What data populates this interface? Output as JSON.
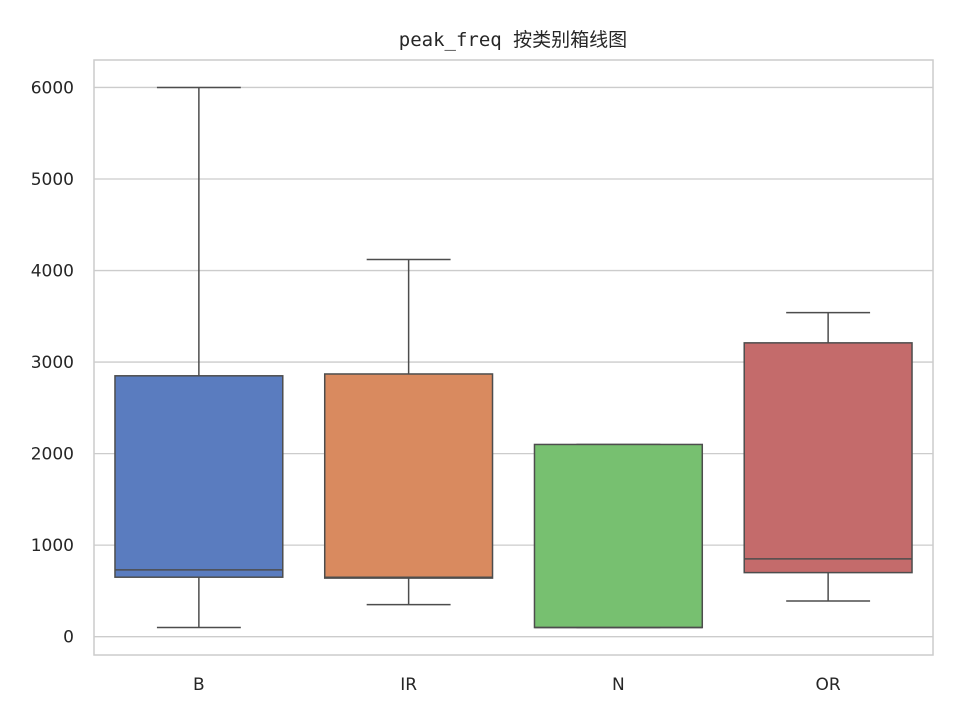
{
  "chart_data": {
    "type": "box",
    "title": "peak_freq 按类别箱线图",
    "xlabel": "",
    "ylabel": "",
    "categories": [
      "B",
      "IR",
      "N",
      "OR"
    ],
    "boxes": [
      {
        "category": "B",
        "whisker_low": 100,
        "q1": 650,
        "median": 730,
        "q3": 2850,
        "whisker_high": 6000,
        "color": "#5a7cbf"
      },
      {
        "category": "IR",
        "whisker_low": 350,
        "q1": 640,
        "median": 650,
        "q3": 2870,
        "whisker_high": 4120,
        "color": "#d98a5f"
      },
      {
        "category": "N",
        "whisker_low": 100,
        "q1": 100,
        "median": 100,
        "q3": 2100,
        "whisker_high": 2100,
        "color": "#77c070"
      },
      {
        "category": "OR",
        "whisker_low": 390,
        "q1": 700,
        "median": 850,
        "q3": 3210,
        "whisker_high": 3540,
        "color": "#c46b6b"
      }
    ],
    "yticks": [
      "0",
      "1000",
      "2000",
      "3000",
      "4000",
      "5000",
      "6000"
    ],
    "ylim": [
      -200,
      6300
    ],
    "grid": "horizontal",
    "line_color": "#4d4d4d",
    "grid_color": "#cccccc"
  }
}
